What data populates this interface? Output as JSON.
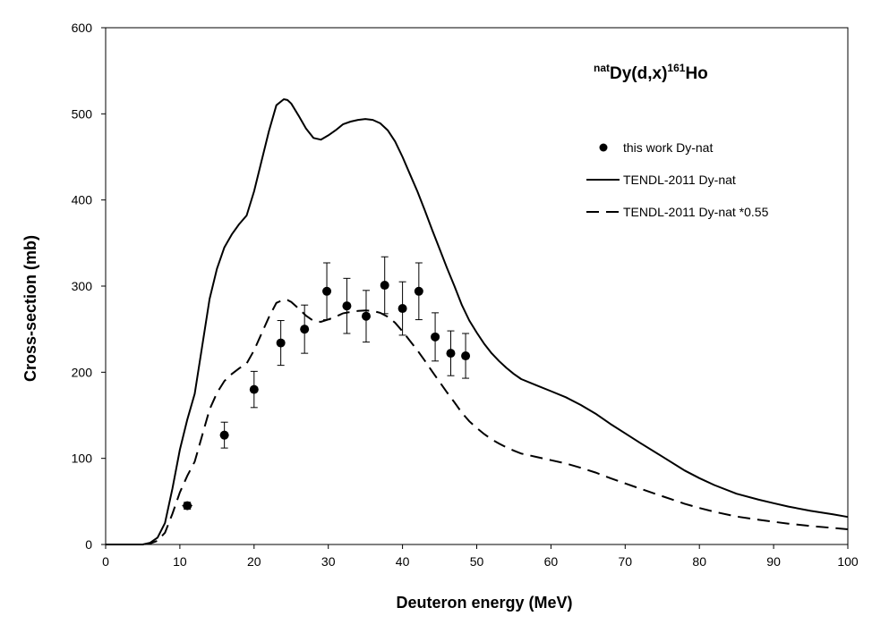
{
  "chart_data": {
    "type": "scatter",
    "title": {
      "prefix_sup": "nat",
      "main": "Dy(d,x)",
      "mid_sup": "161",
      "suffix": "Ho"
    },
    "xlabel": "Deuteron energy (MeV)",
    "ylabel": "Cross-section (mb)",
    "xlim": [
      0,
      100
    ],
    "ylim": [
      0,
      600
    ],
    "xticks": [
      0,
      10,
      20,
      30,
      40,
      50,
      60,
      70,
      80,
      90,
      100
    ],
    "yticks": [
      0,
      100,
      200,
      300,
      400,
      500,
      600
    ],
    "grid": false,
    "legend_position": "top-right",
    "series": [
      {
        "name": "this work Dy-nat",
        "style": "markers-errorbars",
        "points": [
          {
            "x": 11.0,
            "y": 45,
            "yerr": 4,
            "xerr": 0.7
          },
          {
            "x": 16.0,
            "y": 127,
            "yerr": 15,
            "xerr": 0.6
          },
          {
            "x": 20.0,
            "y": 180,
            "yerr": 21,
            "xerr": 0.5
          },
          {
            "x": 23.6,
            "y": 234,
            "yerr": 26,
            "xerr": 0.4
          },
          {
            "x": 26.8,
            "y": 250,
            "yerr": 28,
            "xerr": 0.4
          },
          {
            "x": 29.8,
            "y": 294,
            "yerr": 33,
            "xerr": 0.3
          },
          {
            "x": 32.5,
            "y": 277,
            "yerr": 32,
            "xerr": 0.3
          },
          {
            "x": 35.1,
            "y": 265,
            "yerr": 30,
            "xerr": 0.3
          },
          {
            "x": 37.6,
            "y": 301,
            "yerr": 33,
            "xerr": 0.3
          },
          {
            "x": 40.0,
            "y": 274,
            "yerr": 31,
            "xerr": 0.3
          },
          {
            "x": 42.2,
            "y": 294,
            "yerr": 33,
            "xerr": 0.3
          },
          {
            "x": 44.4,
            "y": 241,
            "yerr": 28,
            "xerr": 0.3
          },
          {
            "x": 46.5,
            "y": 222,
            "yerr": 26,
            "xerr": 0.3
          },
          {
            "x": 48.5,
            "y": 219,
            "yerr": 26,
            "xerr": 0.3
          }
        ]
      },
      {
        "name": "TENDL-2011 Dy-nat",
        "style": "solid",
        "x": [
          0,
          5,
          6,
          7,
          8,
          9,
          10,
          11,
          12,
          13,
          14,
          15,
          16,
          17,
          18,
          19,
          20,
          21,
          22,
          23,
          24,
          24.5,
          25,
          26,
          27,
          28,
          29,
          30,
          31,
          32,
          33,
          34,
          35,
          36,
          37,
          38,
          39,
          40,
          41,
          42,
          43,
          44,
          45,
          46,
          47,
          48,
          49,
          50,
          51,
          52,
          53,
          54,
          55,
          56,
          58,
          60,
          62,
          64,
          66,
          68,
          70,
          72,
          75,
          78,
          80,
          82,
          85,
          88,
          90,
          92,
          95,
          98,
          100
        ],
        "y": [
          0,
          0,
          2,
          8,
          25,
          65,
          110,
          145,
          175,
          230,
          285,
          320,
          345,
          360,
          372,
          382,
          410,
          445,
          480,
          510,
          517,
          516,
          512,
          498,
          483,
          472,
          470,
          475,
          481,
          488,
          491,
          493,
          494,
          493,
          489,
          481,
          468,
          450,
          430,
          410,
          388,
          365,
          343,
          321,
          300,
          278,
          260,
          246,
          233,
          222,
          213,
          205,
          198,
          192,
          185,
          178,
          171,
          162,
          152,
          140,
          129,
          118,
          102,
          86,
          77,
          69,
          59,
          52,
          48,
          44,
          39,
          35,
          32
        ]
      },
      {
        "name": "TENDL-2011 Dy-nat *0.55",
        "style": "dashed",
        "scale": 0.55
      }
    ]
  }
}
